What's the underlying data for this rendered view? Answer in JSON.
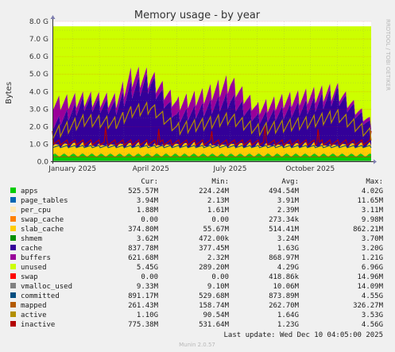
{
  "chart_data": {
    "type": "area",
    "title": "Memory usage - by year",
    "ylabel": "Bytes",
    "ylim": [
      0,
      8.0
    ],
    "y_unit": "G",
    "y_ticks": [
      "0.0",
      "1.0 G",
      "2.0 G",
      "3.0 G",
      "4.0 G",
      "5.0 G",
      "6.0 G",
      "7.0 G",
      "8.0 G"
    ],
    "x_ticks": [
      {
        "label": "January 2025",
        "date": "2025-01-01"
      },
      {
        "label": "April 2025",
        "date": "2025-04-01"
      },
      {
        "label": "July 2025",
        "date": "2025-07-01"
      },
      {
        "label": "October 2025",
        "date": "2025-10-01"
      }
    ],
    "x_range": [
      "2024-12-09",
      "2025-12-10"
    ],
    "grid": true,
    "series_names": [
      "apps",
      "page_tables",
      "per_cpu",
      "swap_cache",
      "slab_cache",
      "shmem",
      "cache",
      "buffers",
      "unused",
      "swap",
      "vmalloc_used",
      "committed",
      "mapped",
      "active",
      "inactive"
    ],
    "approximate_profile_G": {
      "x": [
        "2024-12-10",
        "2025-01-15",
        "2025-02-20",
        "2025-03-10",
        "2025-04-01",
        "2025-05-01",
        "2025-06-01",
        "2025-07-01",
        "2025-08-01",
        "2025-09-01",
        "2025-10-01",
        "2025-11-01",
        "2025-12-10"
      ],
      "cache_top": [
        2.3,
        3.7,
        3.4,
        4.6,
        5.0,
        2.8,
        3.3,
        3.9,
        2.7,
        3.1,
        3.5,
        4.2,
        2.2
      ],
      "buffers_top": [
        3.6,
        3.9,
        3.8,
        5.3,
        5.2,
        3.6,
        4.1,
        4.9,
        3.3,
        3.8,
        4.1,
        4.4,
        2.4
      ],
      "total": [
        7.72,
        7.72,
        7.72,
        7.72,
        7.72,
        7.72,
        7.72,
        7.72,
        7.72,
        7.72,
        7.72,
        7.72,
        7.72
      ]
    }
  },
  "watermark": "RRDTOOL / TOBI OETIKER",
  "legend": {
    "headers": [
      "Cur:",
      "Min:",
      "Avg:",
      "Max:"
    ],
    "rows": [
      {
        "name": "apps",
        "color": "#00cc00",
        "cur": "525.57M",
        "min": "224.24M",
        "avg": "494.54M",
        "max": "4.02G"
      },
      {
        "name": "page_tables",
        "color": "#0066b3",
        "cur": "3.94M",
        "min": "2.13M",
        "avg": "3.91M",
        "max": "11.65M"
      },
      {
        "name": "per_cpu",
        "color": "#ffe9b3",
        "cur": "1.88M",
        "min": "1.61M",
        "avg": "2.39M",
        "max": "3.11M"
      },
      {
        "name": "swap_cache",
        "color": "#ff8000",
        "cur": "0.00",
        "min": "0.00",
        "avg": "273.34k",
        "max": "9.98M"
      },
      {
        "name": "slab_cache",
        "color": "#ffcc00",
        "cur": "374.80M",
        "min": "55.67M",
        "avg": "514.41M",
        "max": "862.21M"
      },
      {
        "name": "shmem",
        "color": "#008f00",
        "cur": "3.62M",
        "min": "472.00k",
        "avg": "3.24M",
        "max": "3.70M"
      },
      {
        "name": "cache",
        "color": "#330099",
        "cur": "837.78M",
        "min": "377.45M",
        "avg": "1.63G",
        "max": "3.20G"
      },
      {
        "name": "buffers",
        "color": "#990099",
        "cur": "621.68M",
        "min": "2.32M",
        "avg": "868.97M",
        "max": "1.21G"
      },
      {
        "name": "unused",
        "color": "#ccff00",
        "cur": "5.45G",
        "min": "289.20M",
        "avg": "4.29G",
        "max": "6.96G"
      },
      {
        "name": "swap",
        "color": "#ff0000",
        "cur": "0.00",
        "min": "0.00",
        "avg": "418.86k",
        "max": "14.96M"
      },
      {
        "name": "vmalloc_used",
        "color": "#808080",
        "cur": "9.33M",
        "min": "9.10M",
        "avg": "10.06M",
        "max": "14.09M"
      },
      {
        "name": "committed",
        "color": "#004d80",
        "cur": "891.17M",
        "min": "529.68M",
        "avg": "873.89M",
        "max": "4.55G"
      },
      {
        "name": "mapped",
        "color": "#b35a00",
        "cur": "261.43M",
        "min": "158.74M",
        "avg": "262.70M",
        "max": "326.27M"
      },
      {
        "name": "active",
        "color": "#b38f00",
        "cur": "1.10G",
        "min": "90.54M",
        "avg": "1.64G",
        "max": "3.53G"
      },
      {
        "name": "inactive",
        "color": "#b30000",
        "cur": "775.38M",
        "min": "531.64M",
        "avg": "1.23G",
        "max": "4.56G"
      }
    ]
  },
  "footer": {
    "last_update": "Last update: Wed Dec 10 04:05:00 2025",
    "version": "Munin 2.0.57"
  }
}
